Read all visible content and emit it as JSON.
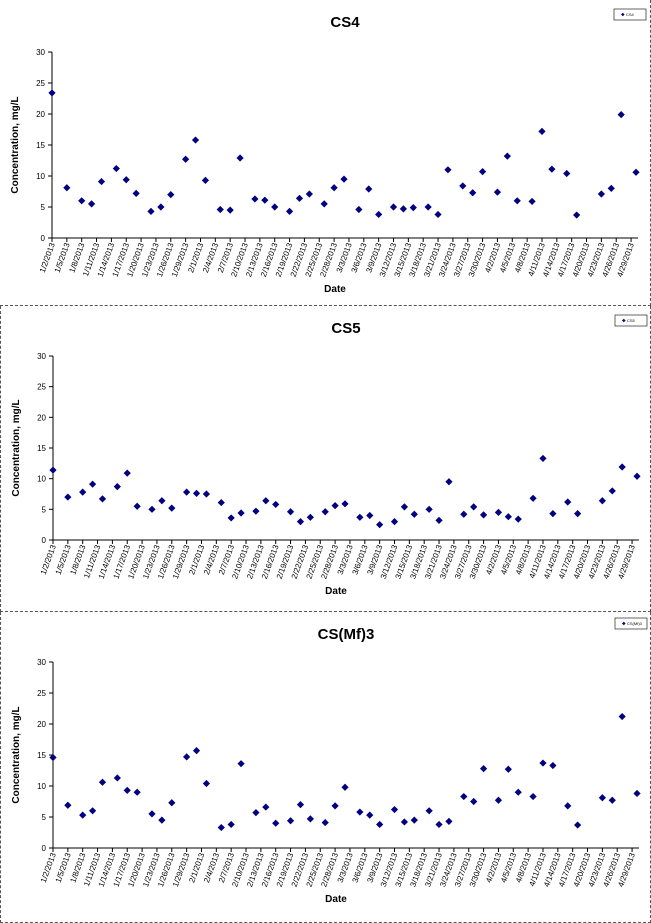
{
  "chart_data": [
    {
      "type": "scatter",
      "title": "CS4",
      "xlabel": "Date",
      "ylabel": "Concentration, mg/L",
      "ylim": [
        0,
        30
      ],
      "yticks": [
        "0",
        "5",
        "10",
        "15",
        "20",
        "25",
        "30"
      ],
      "xticks": [
        "1/2/2013",
        "1/5/2013",
        "1/8/2013",
        "1/11/2013",
        "1/14/2013",
        "1/17/2013",
        "1/20/2013",
        "1/23/2013",
        "1/26/2013",
        "1/29/2013",
        "2/1/2013",
        "2/4/2013",
        "2/7/2013",
        "2/10/2013",
        "2/13/2013",
        "2/16/2013",
        "2/19/2013",
        "2/22/2013",
        "2/25/2013",
        "2/28/2013",
        "3/3/2013",
        "3/6/2013",
        "3/9/2013",
        "3/12/2013",
        "3/15/2013",
        "3/18/2013",
        "3/21/2013",
        "3/24/2013",
        "3/27/2013",
        "3/30/2013",
        "4/2/2013",
        "4/5/2013",
        "4/8/2013",
        "4/11/2013",
        "4/14/2013",
        "4/17/2013",
        "4/20/2013",
        "4/23/2013",
        "4/26/2013",
        "4/29/2013"
      ],
      "grid": false,
      "legend": {
        "position": "top-right",
        "label": "CS4"
      },
      "marker": "diamond",
      "color": "#000080",
      "series": [
        {
          "name": "CS4",
          "points": [
            [
              "1/2/2013",
              23.4
            ],
            [
              "1/5/2013",
              8.1
            ],
            [
              "1/8/2013",
              6.0
            ],
            [
              "1/10/2013",
              5.5
            ],
            [
              "1/12/2013",
              9.1
            ],
            [
              "1/15/2013",
              11.2
            ],
            [
              "1/17/2013",
              9.4
            ],
            [
              "1/19/2013",
              7.2
            ],
            [
              "1/22/2013",
              4.3
            ],
            [
              "1/24/2013",
              5.0
            ],
            [
              "1/26/2013",
              7.0
            ],
            [
              "1/29/2013",
              12.7
            ],
            [
              "1/31/2013",
              15.8
            ],
            [
              "2/2/2013",
              9.3
            ],
            [
              "2/5/2013",
              4.6
            ],
            [
              "2/7/2013",
              4.5
            ],
            [
              "2/9/2013",
              12.9
            ],
            [
              "2/12/2013",
              6.3
            ],
            [
              "2/14/2013",
              6.1
            ],
            [
              "2/16/2013",
              5.0
            ],
            [
              "2/19/2013",
              4.3
            ],
            [
              "2/21/2013",
              6.4
            ],
            [
              "2/23/2013",
              7.1
            ],
            [
              "2/26/2013",
              5.5
            ],
            [
              "2/28/2013",
              8.1
            ],
            [
              "3/2/2013",
              9.5
            ],
            [
              "3/5/2013",
              4.6
            ],
            [
              "3/7/2013",
              7.9
            ],
            [
              "3/9/2013",
              3.8
            ],
            [
              "3/12/2013",
              5.0
            ],
            [
              "3/14/2013",
              4.7
            ],
            [
              "3/16/2013",
              4.9
            ],
            [
              "3/19/2013",
              5.0
            ],
            [
              "3/21/2013",
              3.8
            ],
            [
              "3/23/2013",
              11.0
            ],
            [
              "3/26/2013",
              8.4
            ],
            [
              "3/28/2013",
              7.3
            ],
            [
              "3/30/2013",
              10.7
            ],
            [
              "4/2/2013",
              7.4
            ],
            [
              "4/4/2013",
              13.2
            ],
            [
              "4/6/2013",
              6.0
            ],
            [
              "4/9/2013",
              5.9
            ],
            [
              "4/11/2013",
              17.2
            ],
            [
              "4/13/2013",
              11.1
            ],
            [
              "4/16/2013",
              10.4
            ],
            [
              "4/18/2013",
              3.7
            ],
            [
              "4/23/2013",
              7.1
            ],
            [
              "4/25/2013",
              8.0
            ],
            [
              "4/27/2013",
              19.9
            ],
            [
              "4/30/2013",
              10.6
            ]
          ]
        }
      ]
    },
    {
      "type": "scatter",
      "title": "CS5",
      "xlabel": "Date",
      "ylabel": "Concentration, mg/L",
      "ylim": [
        0,
        30
      ],
      "yticks": [
        "0",
        "5",
        "10",
        "15",
        "20",
        "25",
        "30"
      ],
      "xticks": [
        "1/2/2013",
        "1/5/2013",
        "1/8/2013",
        "1/11/2013",
        "1/14/2013",
        "1/17/2013",
        "1/20/2013",
        "1/23/2013",
        "1/26/2013",
        "1/29/2013",
        "2/1/2013",
        "2/4/2013",
        "2/7/2013",
        "2/10/2013",
        "2/13/2013",
        "2/16/2013",
        "2/19/2013",
        "2/22/2013",
        "2/25/2013",
        "2/28/2013",
        "3/3/2013",
        "3/6/2013",
        "3/9/2013",
        "3/12/2013",
        "3/15/2013",
        "3/18/2013",
        "3/21/2013",
        "3/24/2013",
        "3/27/2013",
        "3/30/2013",
        "4/2/2013",
        "4/5/2013",
        "4/8/2013",
        "4/11/2013",
        "4/14/2013",
        "4/17/2013",
        "4/20/2013",
        "4/23/2013",
        "4/26/2013",
        "4/29/2013"
      ],
      "grid": false,
      "legend": {
        "position": "top-right",
        "label": "CS5"
      },
      "marker": "diamond",
      "color": "#000080",
      "series": [
        {
          "name": "CS5",
          "points": [
            [
              "1/2/2013",
              11.4
            ],
            [
              "1/5/2013",
              7.0
            ],
            [
              "1/8/2013",
              7.8
            ],
            [
              "1/10/2013",
              9.1
            ],
            [
              "1/12/2013",
              6.7
            ],
            [
              "1/15/2013",
              8.7
            ],
            [
              "1/17/2013",
              10.9
            ],
            [
              "1/19/2013",
              5.5
            ],
            [
              "1/22/2013",
              5.0
            ],
            [
              "1/24/2013",
              6.4
            ],
            [
              "1/26/2013",
              5.2
            ],
            [
              "1/29/2013",
              7.8
            ],
            [
              "1/31/2013",
              7.6
            ],
            [
              "2/2/2013",
              7.5
            ],
            [
              "2/5/2013",
              6.1
            ],
            [
              "2/7/2013",
              3.6
            ],
            [
              "2/9/2013",
              4.4
            ],
            [
              "2/12/2013",
              4.7
            ],
            [
              "2/14/2013",
              6.4
            ],
            [
              "2/16/2013",
              5.8
            ],
            [
              "2/19/2013",
              4.6
            ],
            [
              "2/21/2013",
              3.0
            ],
            [
              "2/23/2013",
              3.7
            ],
            [
              "2/26/2013",
              4.6
            ],
            [
              "2/28/2013",
              5.6
            ],
            [
              "3/2/2013",
              5.9
            ],
            [
              "3/5/2013",
              3.7
            ],
            [
              "3/7/2013",
              4.0
            ],
            [
              "3/9/2013",
              2.5
            ],
            [
              "3/12/2013",
              3.0
            ],
            [
              "3/14/2013",
              5.4
            ],
            [
              "3/16/2013",
              4.2
            ],
            [
              "3/19/2013",
              5.0
            ],
            [
              "3/21/2013",
              3.2
            ],
            [
              "3/23/2013",
              9.5
            ],
            [
              "3/26/2013",
              4.2
            ],
            [
              "3/28/2013",
              5.4
            ],
            [
              "3/30/2013",
              4.1
            ],
            [
              "4/2/2013",
              4.5
            ],
            [
              "4/4/2013",
              3.8
            ],
            [
              "4/6/2013",
              3.4
            ],
            [
              "4/9/2013",
              6.8
            ],
            [
              "4/11/2013",
              13.3
            ],
            [
              "4/13/2013",
              4.3
            ],
            [
              "4/16/2013",
              6.2
            ],
            [
              "4/18/2013",
              4.3
            ],
            [
              "4/23/2013",
              6.4
            ],
            [
              "4/25/2013",
              8.0
            ],
            [
              "4/27/2013",
              11.9
            ],
            [
              "4/30/2013",
              10.4
            ]
          ]
        }
      ]
    },
    {
      "type": "scatter",
      "title": "CS(Mf)3",
      "xlabel": "Date",
      "ylabel": "Concentration, mg/L",
      "ylim": [
        0,
        30
      ],
      "yticks": [
        "0",
        "5",
        "10",
        "15",
        "20",
        "25",
        "30"
      ],
      "xticks": [
        "1/2/2013",
        "1/5/2013",
        "1/8/2013",
        "1/11/2013",
        "1/14/2013",
        "1/17/2013",
        "1/20/2013",
        "1/23/2013",
        "1/26/2013",
        "1/29/2013",
        "2/1/2013",
        "2/4/2013",
        "2/7/2013",
        "2/10/2013",
        "2/13/2013",
        "2/16/2013",
        "2/19/2013",
        "2/22/2013",
        "2/25/2013",
        "2/28/2013",
        "3/3/2013",
        "3/6/2013",
        "3/9/2013",
        "3/12/2013",
        "3/15/2013",
        "3/18/2013",
        "3/21/2013",
        "3/24/2013",
        "3/27/2013",
        "3/30/2013",
        "4/2/2013",
        "4/5/2013",
        "4/8/2013",
        "4/11/2013",
        "4/14/2013",
        "4/17/2013",
        "4/20/2013",
        "4/23/2013",
        "4/26/2013",
        "4/29/2013"
      ],
      "grid": false,
      "legend": {
        "position": "top-right",
        "label": "CS(Mf)3"
      },
      "marker": "diamond",
      "color": "#000080",
      "series": [
        {
          "name": "CS(Mf)3",
          "points": [
            [
              "1/2/2013",
              14.6
            ],
            [
              "1/5/2013",
              6.9
            ],
            [
              "1/8/2013",
              5.3
            ],
            [
              "1/10/2013",
              6.0
            ],
            [
              "1/12/2013",
              10.6
            ],
            [
              "1/15/2013",
              11.3
            ],
            [
              "1/17/2013",
              9.3
            ],
            [
              "1/19/2013",
              9.0
            ],
            [
              "1/22/2013",
              5.5
            ],
            [
              "1/24/2013",
              4.5
            ],
            [
              "1/26/2013",
              7.3
            ],
            [
              "1/29/2013",
              14.7
            ],
            [
              "1/31/2013",
              15.7
            ],
            [
              "2/2/2013",
              10.4
            ],
            [
              "2/5/2013",
              3.3
            ],
            [
              "2/7/2013",
              3.8
            ],
            [
              "2/9/2013",
              13.6
            ],
            [
              "2/12/2013",
              5.7
            ],
            [
              "2/14/2013",
              6.6
            ],
            [
              "2/16/2013",
              4.0
            ],
            [
              "2/19/2013",
              4.4
            ],
            [
              "2/21/2013",
              7.0
            ],
            [
              "2/23/2013",
              4.7
            ],
            [
              "2/26/2013",
              4.1
            ],
            [
              "2/28/2013",
              6.8
            ],
            [
              "3/2/2013",
              9.8
            ],
            [
              "3/5/2013",
              5.8
            ],
            [
              "3/7/2013",
              5.3
            ],
            [
              "3/9/2013",
              3.8
            ],
            [
              "3/12/2013",
              6.2
            ],
            [
              "3/14/2013",
              4.2
            ],
            [
              "3/16/2013",
              4.5
            ],
            [
              "3/19/2013",
              6.0
            ],
            [
              "3/21/2013",
              3.8
            ],
            [
              "3/23/2013",
              4.3
            ],
            [
              "3/26/2013",
              8.3
            ],
            [
              "3/28/2013",
              7.5
            ],
            [
              "3/30/2013",
              12.8
            ],
            [
              "4/2/2013",
              7.7
            ],
            [
              "4/4/2013",
              12.7
            ],
            [
              "4/6/2013",
              9.0
            ],
            [
              "4/9/2013",
              8.3
            ],
            [
              "4/11/2013",
              13.7
            ],
            [
              "4/13/2013",
              13.3
            ],
            [
              "4/16/2013",
              6.8
            ],
            [
              "4/18/2013",
              3.7
            ],
            [
              "4/23/2013",
              8.1
            ],
            [
              "4/25/2013",
              7.7
            ],
            [
              "4/27/2013",
              21.2
            ],
            [
              "4/30/2013",
              8.8
            ]
          ]
        }
      ]
    }
  ]
}
